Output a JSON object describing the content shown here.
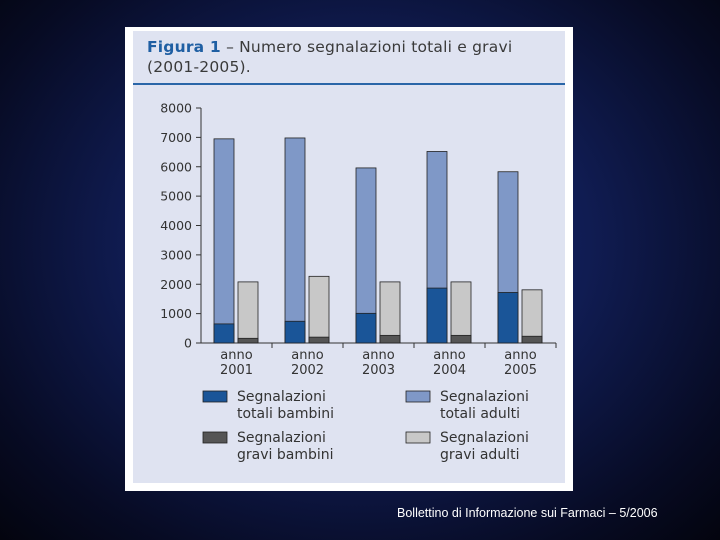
{
  "slide": {
    "footer": "Bollettino di Informazione sui Farmaci – 5/2006"
  },
  "figure": {
    "label": "Figura 1",
    "title": "– Numero segnalazioni totali e gravi (2001-2005)."
  },
  "colors": {
    "totali_bambini": "#1a5598",
    "totali_adulti": "#7f98c7",
    "gravi_bambini": "#555555",
    "gravi_adulti": "#c8c8c8",
    "panel_bg": "#dfe3f1",
    "title_label": "#1f5fa3"
  },
  "chart_data": {
    "type": "bar",
    "stacking": "overlaid pairs",
    "categories": [
      "anno 2001",
      "anno 2002",
      "anno 2003",
      "anno 2004",
      "anno 2005"
    ],
    "ylim": [
      0,
      8000
    ],
    "yticks": [
      0,
      1000,
      2000,
      3000,
      4000,
      5000,
      6000,
      7000,
      8000
    ],
    "grid": false,
    "legend_position": "bottom",
    "series": [
      {
        "name": "Segnalazioni totali bambini",
        "key": "totali_bambini",
        "group": "totali",
        "values": [
          650,
          740,
          1010,
          1870,
          1720
        ]
      },
      {
        "name": "Segnalazioni totali adulti",
        "key": "totali_adulti",
        "group": "totali",
        "values": [
          6950,
          6980,
          5960,
          6520,
          5830
        ]
      },
      {
        "name": "Segnalazioni gravi bambini",
        "key": "gravi_bambini",
        "group": "gravi",
        "values": [
          160,
          200,
          260,
          260,
          230
        ]
      },
      {
        "name": "Segnalazioni gravi adulti",
        "key": "gravi_adulti",
        "group": "gravi",
        "values": [
          2080,
          2270,
          2080,
          2080,
          1810
        ]
      }
    ],
    "legend": [
      {
        "key": "totali_bambini",
        "line1": "Segnalazioni",
        "line2": "totali bambini"
      },
      {
        "key": "totali_adulti",
        "line1": "Segnalazioni",
        "line2": "totali adulti"
      },
      {
        "key": "gravi_bambini",
        "line1": "Segnalazioni",
        "line2": "gravi bambini"
      },
      {
        "key": "gravi_adulti",
        "line1": "Segnalazioni",
        "line2": "gravi adulti"
      }
    ]
  }
}
